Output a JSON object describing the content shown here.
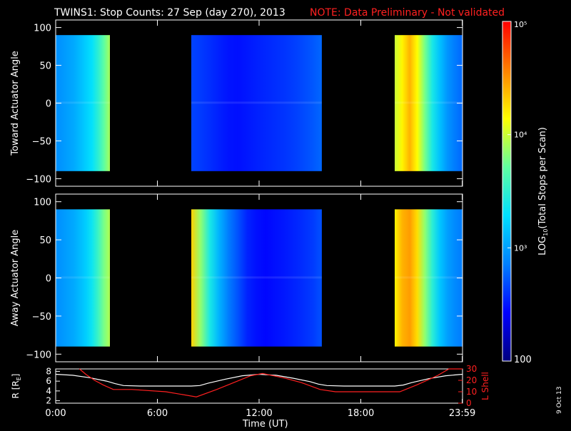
{
  "header": {
    "title": "TWINS1: Stop Counts: 27 Sep (day 270), 2013",
    "note": "NOTE: Data Preliminary - Not validated",
    "note_color": "#ff2020"
  },
  "footer": {
    "date_stamp": "9 Oct 13",
    "xlabel": "Time (UT)"
  },
  "colorbar": {
    "label": "LOG10(Total Stops per Scan)",
    "label_base": "LOG",
    "label_sub": "10",
    "label_rest": "(Total Stops per Scan)",
    "tick_labels": [
      "100",
      "10³",
      "10⁴",
      "10⁵"
    ],
    "tick_values": [
      100,
      1000,
      10000,
      100000
    ],
    "scale": "log",
    "range": [
      100,
      100000
    ],
    "colors": [
      "#00007f",
      "#0000ff",
      "#0080ff",
      "#00e0ff",
      "#60ffa0",
      "#ffff00",
      "#ff8000",
      "#ff0000"
    ]
  },
  "chart_data": [
    {
      "type": "heatmap",
      "name": "toward-panel",
      "ylabel": "Toward Actuator Angle",
      "xlabel": "",
      "xlim": [
        0,
        24
      ],
      "ylim": [
        -110,
        110
      ],
      "yticks": [
        100,
        50,
        0,
        -50,
        -100
      ],
      "ytick_labels": [
        "100",
        "50",
        "0",
        "−50",
        "−100"
      ],
      "data_range_y": [
        -90,
        90
      ],
      "segments": [
        {
          "start": 0.0,
          "end": 3.2,
          "profile": [
            850,
            900,
            1000,
            1100,
            1300,
            1600,
            2000,
            3000,
            5000,
            8000
          ]
        },
        {
          "start": 8.0,
          "end": 15.7,
          "profile": [
            450,
            420,
            380,
            340,
            310,
            300,
            320,
            340,
            360,
            380,
            400,
            430,
            470,
            520,
            600
          ]
        },
        {
          "start": 20.0,
          "end": 23.99,
          "profile": [
            10000,
            15000,
            25000,
            14000,
            6000,
            2500,
            1400,
            900,
            700,
            600
          ]
        }
      ]
    },
    {
      "type": "heatmap",
      "name": "away-panel",
      "ylabel": "Away Actuator Angle",
      "xlabel": "",
      "xlim": [
        0,
        24
      ],
      "ylim": [
        -110,
        110
      ],
      "yticks": [
        100,
        50,
        0,
        -50,
        -100
      ],
      "ytick_labels": [
        "100",
        "50",
        "0",
        "−50",
        "−100"
      ],
      "data_range_y": [
        -90,
        90
      ],
      "segments": [
        {
          "start": 0.0,
          "end": 3.2,
          "profile": [
            850,
            900,
            1000,
            1100,
            1300,
            1600,
            2200,
            3500,
            6000,
            8500
          ]
        },
        {
          "start": 8.0,
          "end": 15.7,
          "profile": [
            20000,
            7000,
            2500,
            1200,
            700,
            500,
            350,
            300,
            280,
            300,
            320,
            350,
            380,
            420,
            500
          ]
        },
        {
          "start": 20.0,
          "end": 23.99,
          "profile": [
            15000,
            25000,
            30000,
            18000,
            7000,
            3000,
            1500,
            1000,
            800,
            700
          ]
        }
      ]
    },
    {
      "type": "line",
      "name": "orbit-panel",
      "ylabel": "R [RE]",
      "ylabel_base": "R [R",
      "ylabel_sub": "E",
      "ylabel_end": "]",
      "y2label": "L Shell",
      "xlabel": "Time (UT)",
      "xlim": [
        0,
        24
      ],
      "xticks": [
        0,
        6,
        12,
        18,
        23.983
      ],
      "xtick_labels": [
        "0:00",
        "6:00",
        "12:00",
        "18:00",
        "23:59"
      ],
      "ylim": [
        1.5,
        8.5
      ],
      "yticks": [
        2,
        4,
        6,
        8
      ],
      "ytick_labels": [
        "2",
        "4",
        "6",
        "8"
      ],
      "y2lim": [
        0,
        30
      ],
      "y2ticks": [
        0,
        10,
        20,
        30
      ],
      "y2tick_labels": [
        "0",
        "10",
        "20",
        "30"
      ],
      "series": [
        {
          "color": "#ffffff",
          "axis": "left",
          "x": [
            0,
            1,
            2,
            3,
            3.5,
            4,
            5,
            6,
            7,
            8,
            8.5,
            9,
            10,
            11,
            12,
            13,
            14,
            15,
            15.5,
            16,
            17,
            18,
            19,
            20,
            20.5,
            21,
            22,
            23,
            24
          ],
          "y": [
            7.4,
            7.2,
            6.7,
            6.0,
            5.5,
            5.1,
            5.0,
            5.0,
            5.0,
            5.0,
            5.1,
            5.6,
            6.4,
            7.1,
            7.4,
            7.2,
            6.6,
            5.9,
            5.4,
            5.1,
            5.0,
            5.0,
            5.0,
            5.0,
            5.2,
            5.7,
            6.5,
            7.1,
            7.4
          ]
        },
        {
          "color": "#ff2020",
          "axis": "right",
          "x": [
            1.4,
            1.8,
            2.3,
            2.8,
            3.4,
            4.5,
            6.5,
            8.3,
            9.5,
            10.5,
            11.5,
            12.2,
            13.5,
            14.5,
            15.6,
            16.5,
            18.5,
            19.5,
            20.3,
            21.3,
            22.5,
            23.2,
            24
          ],
          "y": [
            30,
            25,
            20,
            16,
            12,
            12,
            10,
            5.5,
            12,
            18,
            24,
            26,
            22,
            18,
            12,
            10,
            10,
            10,
            10,
            16,
            24,
            30,
            30
          ]
        }
      ]
    }
  ]
}
